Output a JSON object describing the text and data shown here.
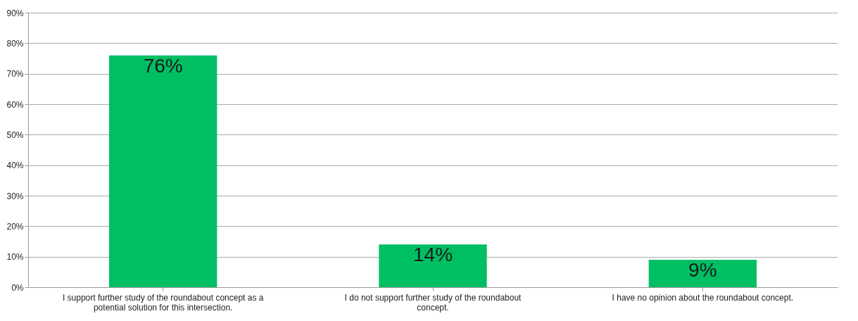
{
  "chart_data": {
    "type": "bar",
    "categories": [
      "I support further study of the roundabout concept as a potential solution for this intersection.",
      "I do not support further study of the roundabout concept.",
      "I have no opinion about the roundabout concept."
    ],
    "values": [
      76,
      14,
      9
    ],
    "color": "#00bf63",
    "ylim": [
      0,
      90
    ],
    "yticks": [
      {
        "value": 0,
        "label": "0%"
      },
      {
        "value": 10,
        "label": "10%"
      },
      {
        "value": 20,
        "label": "20%"
      },
      {
        "value": 30,
        "label": "30%"
      },
      {
        "value": 40,
        "label": "40%"
      },
      {
        "value": 50,
        "label": "50%"
      },
      {
        "value": 60,
        "label": "60%"
      },
      {
        "value": 70,
        "label": "70%"
      },
      {
        "value": 80,
        "label": "80%"
      },
      {
        "value": 90,
        "label": "90%"
      }
    ],
    "value_labels": [
      "76%",
      "14%",
      "9%"
    ],
    "grid": true
  }
}
